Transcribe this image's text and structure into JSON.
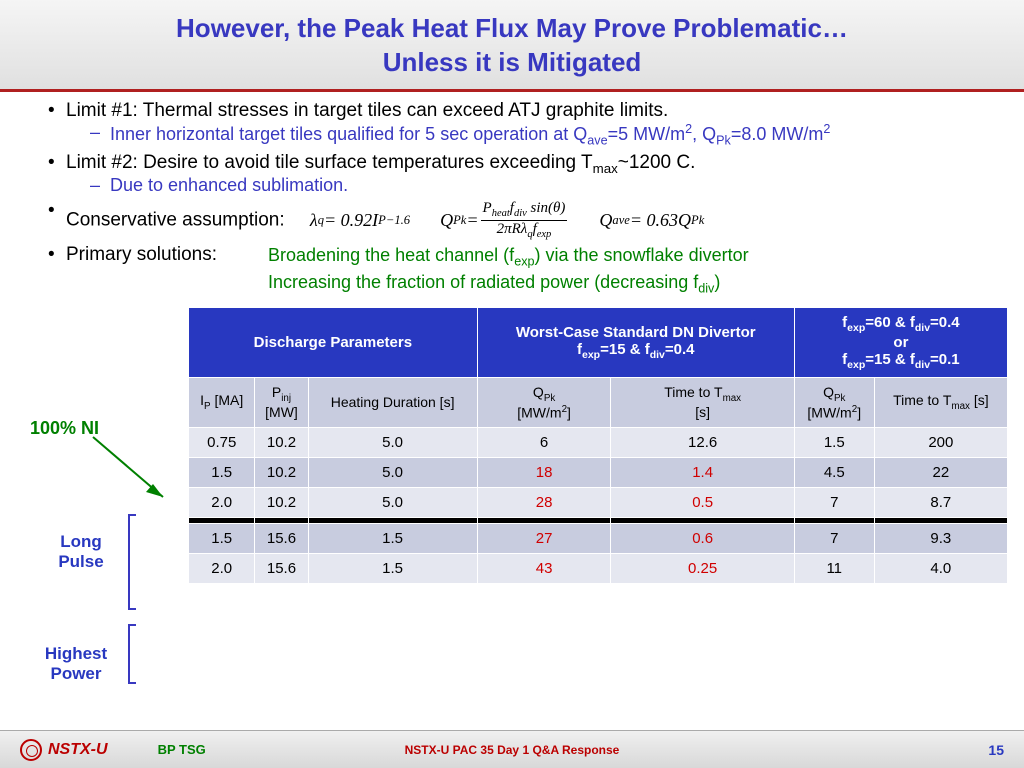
{
  "title_line1": "However, the Peak Heat Flux May Prove Problematic…",
  "title_line2": "Unless it is Mitigated",
  "bullets": {
    "limit1": "Limit #1: Thermal stresses in target tiles can exceed ATJ graphite limits.",
    "limit1_sub": "Inner horizontal target tiles qualified for 5 sec operation at Q",
    "limit1_sub_q1": "=5 MW/m",
    "limit1_sub_q2": ", Q",
    "limit1_sub_q3": "=8.0 MW/m",
    "limit2": "Limit #2: Desire to avoid tile surface temperatures exceeding T",
    "limit2_b": "~1200 C.",
    "limit2_sub": "Due to enhanced sublimation.",
    "conservative": "Conservative assumption:",
    "primary": "Primary solutions:"
  },
  "equations": {
    "eq1_lhs": "λ",
    "eq1_rhs": " = 0.92I",
    "eq1_exp": "−1.6",
    "eq2_lhs": "Q",
    "eq2_num_a": "P",
    "eq2_num_b": "f",
    "eq2_num_c": " sin(θ)",
    "eq2_den": "2πRλ",
    "eq2_den_b": "f",
    "eq3_lhs": "Q",
    "eq3_rhs": " = 0.63Q"
  },
  "solutions": {
    "line1_a": "Broadening the heat channel (f",
    "line1_b": ") via the snowflake divertor",
    "line2_a": "Increasing the fraction of radiated power (decreasing f",
    "line2_b": ")"
  },
  "labels": {
    "ni": "100% NI",
    "long": "Long Pulse",
    "highest": "Highest Power"
  },
  "table": {
    "h1": {
      "c1": "Discharge Parameters",
      "c2_a": "Worst-Case Standard DN Divertor",
      "c2_b": "f",
      "c2_c": "=15 & f",
      "c2_d": "=0.4",
      "c3_a": "f",
      "c3_b": "=60 & f",
      "c3_c": "=0.4",
      "c3_d": "or",
      "c3_e": "f",
      "c3_f": "=15 & f",
      "c3_g": "=0.1"
    },
    "h2": {
      "c1": "I",
      "c1b": " [MA]",
      "c2": "P",
      "c2b": " [MW]",
      "c3": "Heating Duration [s]",
      "c4": "Q",
      "c4b": " [MW/m",
      "c4c": "]",
      "c5": "Time to T",
      "c5b": " [s]",
      "c6": "Q",
      "c6b": " [MW/m",
      "c6c": "]",
      "c7": "Time to T",
      "c7b": " [s]"
    },
    "rows": [
      {
        "ip": "0.75",
        "pinj": "10.2",
        "dur": "5.0",
        "qpk1": "6",
        "t1": "12.6",
        "qpk2": "1.5",
        "t2": "200",
        "r1": false,
        "r2": false
      },
      {
        "ip": "1.5",
        "pinj": "10.2",
        "dur": "5.0",
        "qpk1": "18",
        "t1": "1.4",
        "qpk2": "4.5",
        "t2": "22",
        "r1": true,
        "r2": true
      },
      {
        "ip": "2.0",
        "pinj": "10.2",
        "dur": "5.0",
        "qpk1": "28",
        "t1": "0.5",
        "qpk2": "7",
        "t2": "8.7",
        "r1": true,
        "r2": true
      },
      {
        "ip": "1.5",
        "pinj": "15.6",
        "dur": "1.5",
        "qpk1": "27",
        "t1": "0.6",
        "qpk2": "7",
        "t2": "9.3",
        "r1": true,
        "r2": true
      },
      {
        "ip": "2.0",
        "pinj": "15.6",
        "dur": "1.5",
        "qpk1": "43",
        "t1": "0.25",
        "qpk2": "11",
        "t2": "4.0",
        "r1": true,
        "r2": true
      }
    ]
  },
  "footer": {
    "nstxu": "NSTX-U",
    "bptsg": "BP TSG",
    "center": "NSTX-U PAC 35 Day 1 Q&A Response",
    "page": "15"
  },
  "colors": {
    "title": "#3838c0",
    "accent_red": "#b02020",
    "green": "#008000",
    "table_header": "#2838c0",
    "red_text": "#d00000"
  }
}
